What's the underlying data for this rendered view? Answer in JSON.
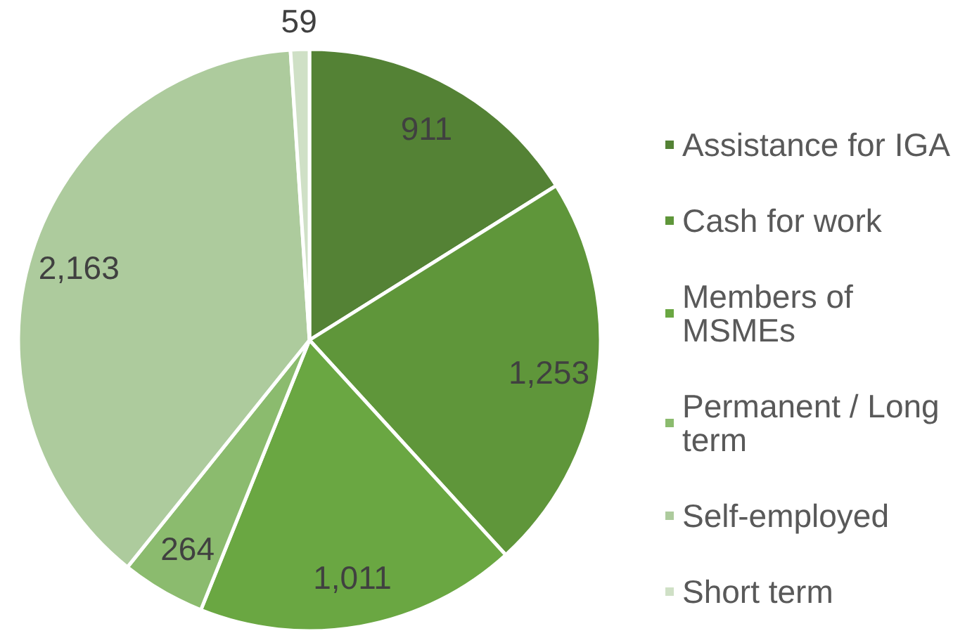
{
  "chart_data": {
    "type": "pie",
    "categories": [
      "Assistance for IGA",
      "Cash for work",
      "Members of MSMEs",
      "Permanent / Long term",
      "Self-employed",
      "Short term"
    ],
    "values": [
      911,
      1253,
      1011,
      264,
      2163,
      59
    ],
    "colors": [
      "#548235",
      "#5f963a",
      "#6aa742",
      "#8bbb6e",
      "#adcb9d",
      "#cfe0c6"
    ],
    "value_labels": [
      "911",
      "1,253",
      "1,011",
      "264",
      "2,163",
      "59"
    ],
    "legend": "right"
  }
}
